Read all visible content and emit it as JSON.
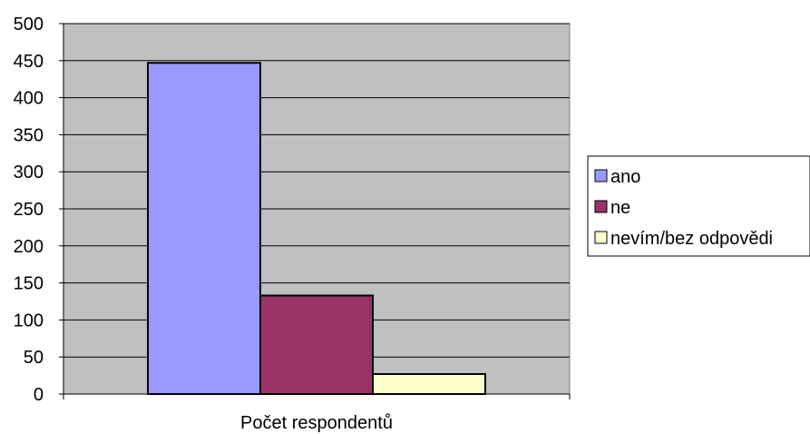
{
  "chart_data": {
    "type": "bar",
    "categories": [
      "Počet respondentů"
    ],
    "series": [
      {
        "name": "ano",
        "values": [
          447
        ],
        "color": "#9999FF"
      },
      {
        "name": "ne",
        "values": [
          133
        ],
        "color": "#993366"
      },
      {
        "name": "nevím/bez odpovědi",
        "values": [
          27
        ],
        "color": "#FFFFCC"
      }
    ],
    "yticks": [
      0,
      50,
      100,
      150,
      200,
      250,
      300,
      350,
      400,
      450,
      500
    ],
    "ylim": [
      0,
      500
    ],
    "grid": true,
    "legend_position": "right",
    "plot_background": "#C0C0C0"
  }
}
